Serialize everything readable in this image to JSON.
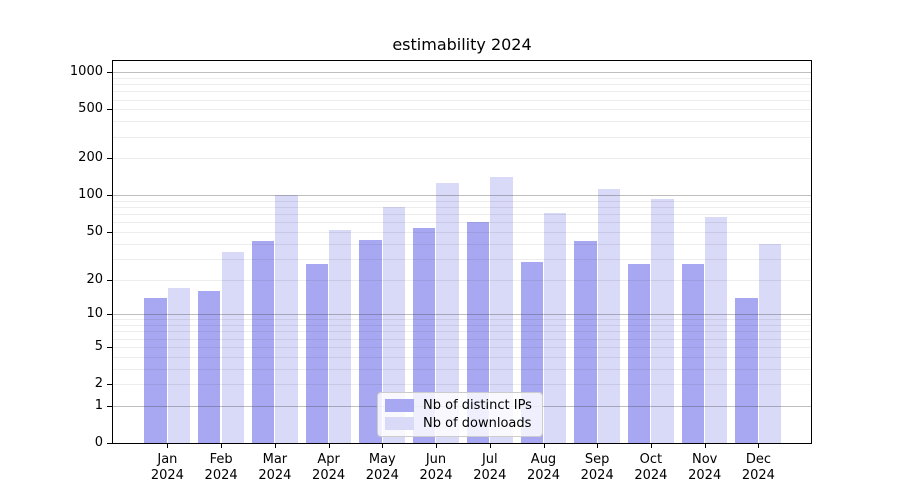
{
  "chart_data": {
    "type": "bar",
    "title": "estimability 2024",
    "categories": [
      "Jan 2024",
      "Feb 2024",
      "Mar 2024",
      "Apr 2024",
      "May 2024",
      "Jun 2024",
      "Jul 2024",
      "Aug 2024",
      "Sep 2024",
      "Oct 2024",
      "Nov 2024",
      "Dec 2024"
    ],
    "series": [
      {
        "name": "Nb of distinct IPs",
        "color": "#a8a8f2",
        "values": [
          14,
          16,
          42,
          27,
          43,
          54,
          60,
          28,
          42,
          27,
          27,
          14
        ]
      },
      {
        "name": "Nb of downloads",
        "color": "#d9d9f8",
        "values": [
          17,
          34,
          100,
          52,
          80,
          125,
          140,
          72,
          113,
          94,
          67,
          40
        ]
      }
    ],
    "y_axis": {
      "scale": "log1p",
      "ticks": [
        0,
        1,
        2,
        5,
        10,
        20,
        50,
        100,
        200,
        500,
        1000
      ],
      "ylim": [
        0,
        1230
      ]
    },
    "grid": true,
    "legend_position": "lower center"
  }
}
